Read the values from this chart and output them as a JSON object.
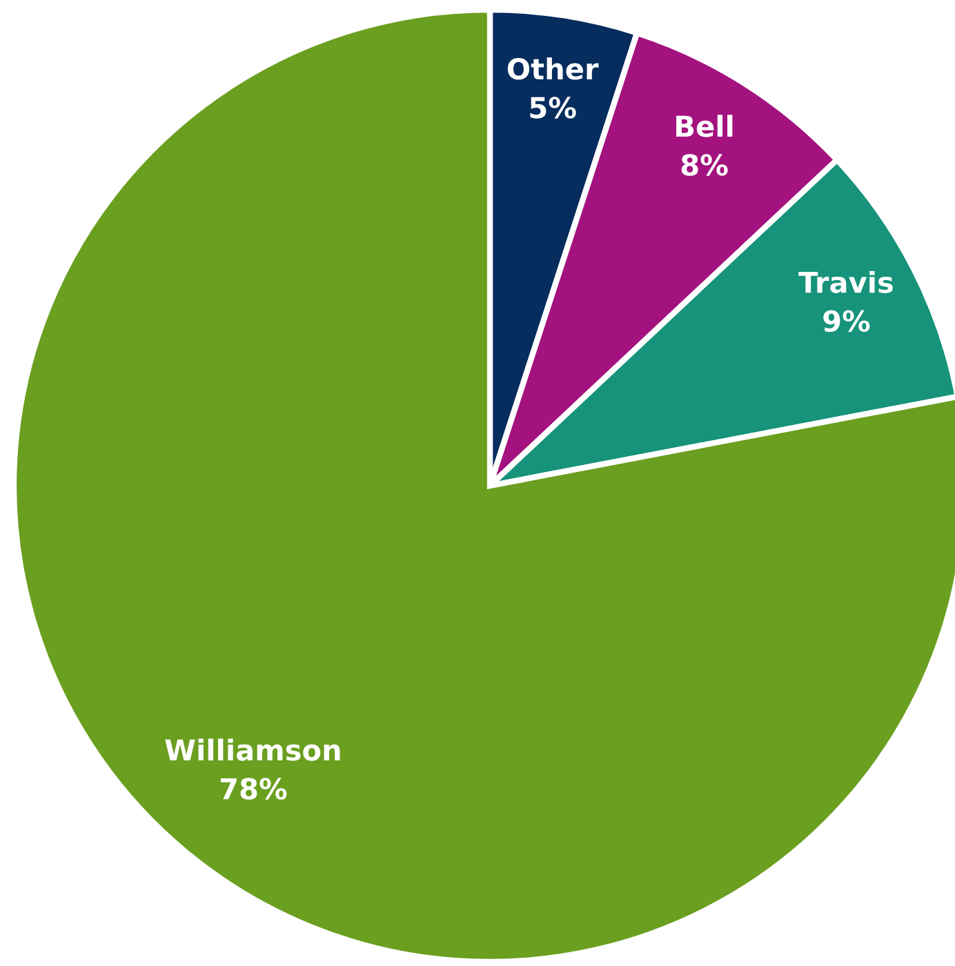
{
  "chart_data": {
    "type": "pie",
    "categories": [
      "Other",
      "Bell",
      "Travis",
      "Williamson"
    ],
    "values": [
      5,
      8,
      9,
      78
    ],
    "colors": [
      "#062d5e",
      "#a3127e",
      "#16937a",
      "#6a9f1f"
    ],
    "value_labels": [
      "5%",
      "8%",
      "9%",
      "78%"
    ]
  }
}
